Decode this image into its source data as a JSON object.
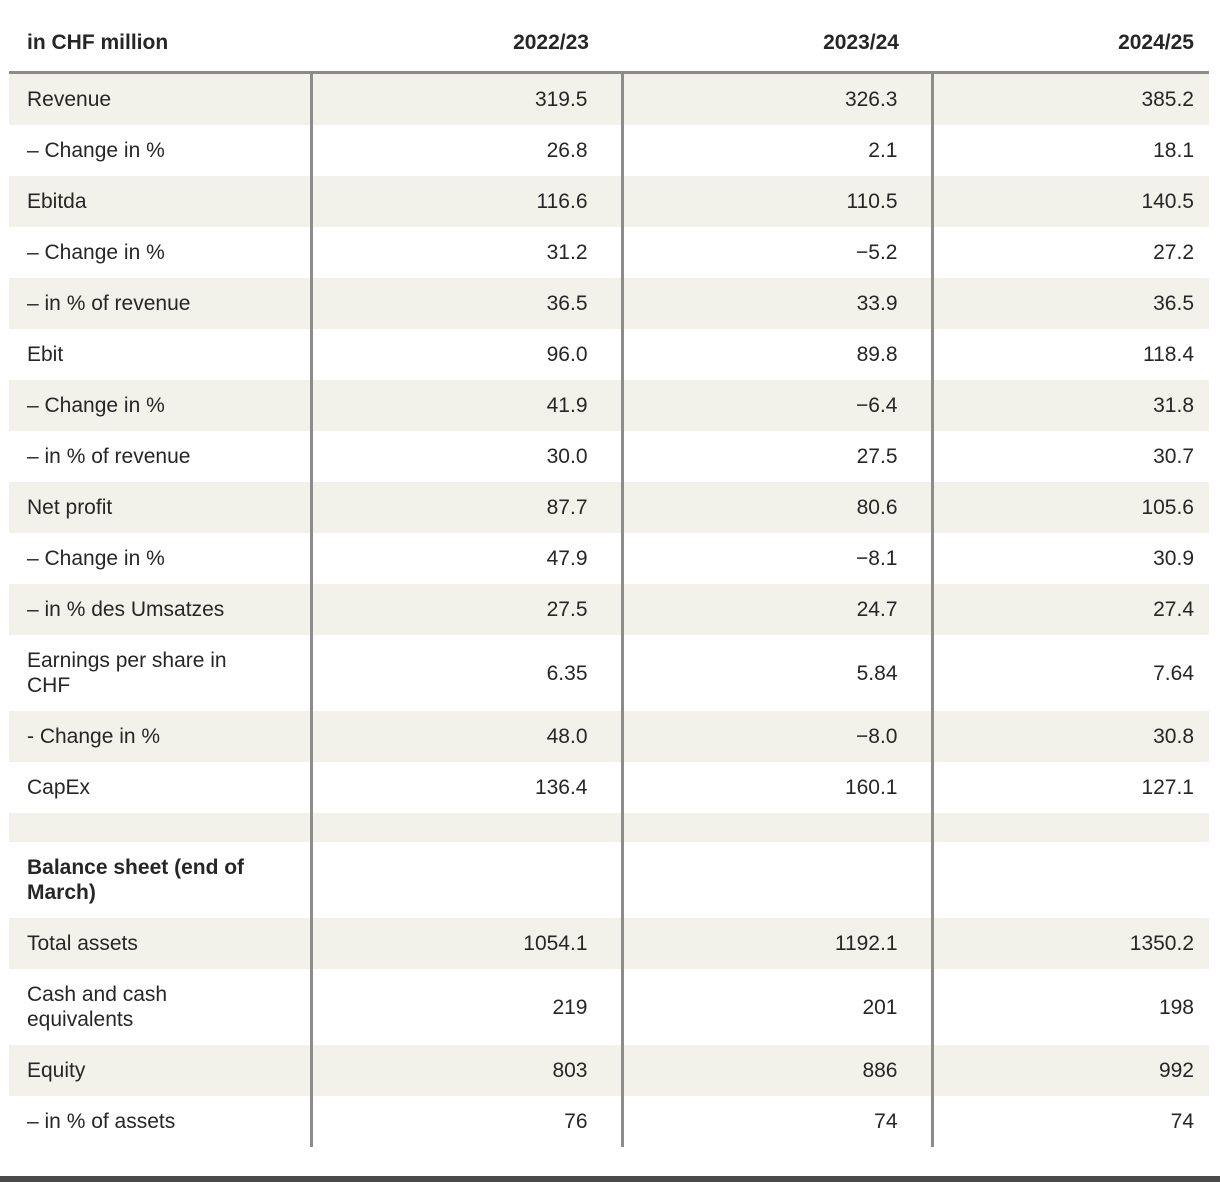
{
  "table": {
    "unit_label": "in CHF million",
    "columns": [
      "2022/23",
      "2023/24",
      "2024/25"
    ],
    "rows": [
      {
        "label": "Revenue",
        "values": [
          "319.5",
          "326.3",
          "385.2"
        ],
        "shaded": true,
        "bold": false,
        "spacer": false
      },
      {
        "label": "– Change in %",
        "values": [
          "26.8",
          "2.1",
          "18.1"
        ],
        "shaded": false,
        "bold": false,
        "spacer": false
      },
      {
        "label": "Ebitda",
        "values": [
          "116.6",
          "110.5",
          "140.5"
        ],
        "shaded": true,
        "bold": false,
        "spacer": false
      },
      {
        "label": "– Change in %",
        "values": [
          "31.2",
          "−5.2",
          "27.2"
        ],
        "shaded": false,
        "bold": false,
        "spacer": false
      },
      {
        "label": "– in % of revenue",
        "values": [
          "36.5",
          "33.9",
          "36.5"
        ],
        "shaded": true,
        "bold": false,
        "spacer": false
      },
      {
        "label": "Ebit",
        "values": [
          "96.0",
          "89.8",
          "118.4"
        ],
        "shaded": false,
        "bold": false,
        "spacer": false
      },
      {
        "label": "– Change in %",
        "values": [
          "41.9",
          "−6.4",
          "31.8"
        ],
        "shaded": true,
        "bold": false,
        "spacer": false
      },
      {
        "label": "– in % of revenue",
        "values": [
          "30.0",
          "27.5",
          "30.7"
        ],
        "shaded": false,
        "bold": false,
        "spacer": false
      },
      {
        "label": "Net profit",
        "values": [
          "87.7",
          "80.6",
          "105.6"
        ],
        "shaded": true,
        "bold": false,
        "spacer": false
      },
      {
        "label": "– Change in %",
        "values": [
          "47.9",
          "−8.1",
          "30.9"
        ],
        "shaded": false,
        "bold": false,
        "spacer": false
      },
      {
        "label": "– in % des Umsatzes",
        "values": [
          "27.5",
          "24.7",
          "27.4"
        ],
        "shaded": true,
        "bold": false,
        "spacer": false
      },
      {
        "label": "Earnings per share in CHF",
        "values": [
          "6.35",
          "5.84",
          "7.64"
        ],
        "shaded": false,
        "bold": false,
        "spacer": false
      },
      {
        "label": "- Change in %",
        "values": [
          "48.0",
          "−8.0",
          "30.8"
        ],
        "shaded": true,
        "bold": false,
        "spacer": false
      },
      {
        "label": "CapEx",
        "values": [
          "136.4",
          "160.1",
          "127.1"
        ],
        "shaded": false,
        "bold": false,
        "spacer": false
      },
      {
        "label": "",
        "values": [
          "",
          "",
          ""
        ],
        "shaded": true,
        "bold": false,
        "spacer": true
      },
      {
        "label": "Balance sheet (end of March)",
        "values": [
          "",
          "",
          ""
        ],
        "shaded": false,
        "bold": true,
        "spacer": false
      },
      {
        "label": "Total assets",
        "values": [
          "1054.1",
          "1192.1",
          "1350.2"
        ],
        "shaded": true,
        "bold": false,
        "spacer": false
      },
      {
        "label": "Cash and cash equivalents",
        "values": [
          "219",
          "201",
          "198"
        ],
        "shaded": false,
        "bold": false,
        "spacer": false
      },
      {
        "label": "Equity",
        "values": [
          "803",
          "886",
          "992"
        ],
        "shaded": true,
        "bold": false,
        "spacer": false
      },
      {
        "label": "– in % of assets",
        "values": [
          "76",
          "74",
          "74"
        ],
        "shaded": false,
        "bold": false,
        "spacer": false
      }
    ]
  },
  "colors": {
    "row_shaded": "#f2f1ea",
    "column_rule": "#8c8c8a",
    "header_rule": "#8c8c8a",
    "bottom_rule": "#4a4a4a",
    "text": "#262626"
  }
}
